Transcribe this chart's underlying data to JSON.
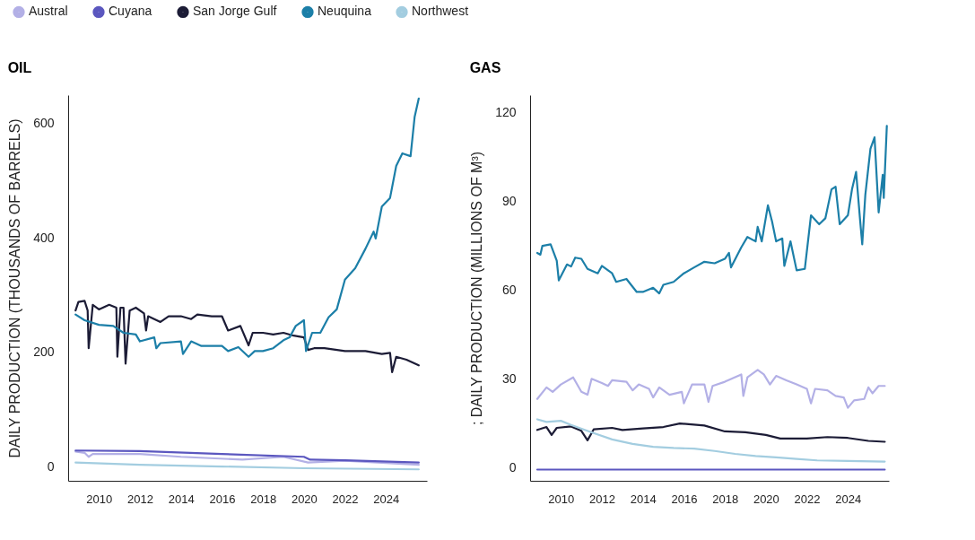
{
  "chart_data": [
    {
      "type": "line",
      "title": "OIL",
      "ylabel": "DAILY PRODUCTION (THOUSANDS OF BARRELS)",
      "legend": "top",
      "xlim": [
        2008.5,
        2026
      ],
      "xticks": [
        2010,
        2012,
        2014,
        2016,
        2018,
        2020,
        2022,
        2024
      ],
      "ylim": [
        -25,
        650
      ],
      "yticks": [
        0,
        200,
        400,
        600
      ],
      "series": [
        {
          "name": "Austral",
          "color": "#b3b0e6",
          "x": [
            2008.86,
            2009.3,
            2009.5,
            2009.7,
            2012,
            2014,
            2017,
            2019,
            2020.2,
            2022,
            2025.6
          ],
          "values": [
            26,
            24,
            17,
            22,
            22,
            17,
            12,
            17,
            7,
            10,
            3
          ]
        },
        {
          "name": "Cuyana",
          "color": "#5b57bf",
          "x": [
            2008.86,
            2012,
            2016,
            2020,
            2020.3,
            2022,
            2025.6
          ],
          "values": [
            28,
            27,
            22,
            17,
            12,
            11,
            7
          ]
        },
        {
          "name": "San Jorge Gulf",
          "color": "#1c1c36",
          "x": [
            2008.86,
            2009.0,
            2009.3,
            2009.45,
            2009.5,
            2009.7,
            2010.0,
            2010.5,
            2010.85,
            2010.9,
            2011.05,
            2011.2,
            2011.3,
            2011.5,
            2011.8,
            2012.2,
            2012.3,
            2012.4,
            2013,
            2013.4,
            2014,
            2014.5,
            2014.8,
            2015.5,
            2016.0,
            2016.3,
            2016.9,
            2017.3,
            2017.5,
            2018,
            2018.5,
            2019.0,
            2019.5,
            2020,
            2020.2,
            2020.5,
            2021,
            2022,
            2023,
            2023.8,
            2024.2,
            2024.3,
            2024.5,
            2025,
            2025.6
          ],
          "values": [
            273,
            288,
            290,
            273,
            207,
            283,
            275,
            283,
            278,
            192,
            278,
            278,
            180,
            273,
            278,
            268,
            238,
            263,
            253,
            263,
            263,
            258,
            266,
            263,
            263,
            238,
            246,
            212,
            234,
            234,
            231,
            234,
            229,
            226,
            204,
            207,
            207,
            202,
            202,
            197,
            199,
            165,
            192,
            187,
            177
          ]
        },
        {
          "name": "Neuquina",
          "color": "#1c7fa8",
          "x": [
            2008.86,
            2009.3,
            2010,
            2010.7,
            2011.2,
            2011.8,
            2012.0,
            2012.7,
            2012.8,
            2013,
            2014,
            2014.1,
            2014.5,
            2015,
            2016,
            2016.3,
            2016.8,
            2017.3,
            2017.6,
            2018,
            2018.5,
            2019,
            2019.3,
            2019.6,
            2020.0,
            2020.1,
            2020.4,
            2020.8,
            2021.2,
            2021.6,
            2022.0,
            2022.5,
            2023.0,
            2023.4,
            2023.5,
            2023.8,
            2024.2,
            2024.5,
            2024.8,
            2025.2,
            2025.4,
            2025.6
          ],
          "values": [
            266,
            256,
            248,
            246,
            234,
            231,
            219,
            226,
            207,
            216,
            219,
            197,
            219,
            211,
            211,
            202,
            209,
            192,
            202,
            202,
            207,
            221,
            226,
            246,
            256,
            202,
            234,
            234,
            261,
            275,
            327,
            347,
            381,
            411,
            399,
            455,
            470,
            526,
            548,
            543,
            612,
            644
          ]
        },
        {
          "name": "Northwest",
          "color": "#a3cde0",
          "x": [
            2008.86,
            2012,
            2016,
            2020,
            2025.6
          ],
          "values": [
            7,
            3,
            0,
            -3,
            -5
          ]
        }
      ]
    },
    {
      "type": "line",
      "title": "GAS",
      "ylabel": "; DAILY PRODUCTION (MILLIONS OF M³)",
      "xlim": [
        2008.5,
        2026
      ],
      "xticks": [
        2010,
        2012,
        2014,
        2016,
        2018,
        2020,
        2022,
        2024
      ],
      "ylim": [
        -4.5,
        126
      ],
      "yticks": [
        0,
        30,
        60,
        90,
        120
      ],
      "series": [
        {
          "name": "Austral",
          "color": "#b3b0e6",
          "x": [
            2008.85,
            2009.3,
            2009.6,
            2010.0,
            2010.6,
            2011.0,
            2011.3,
            2011.5,
            2012.0,
            2012.3,
            2012.5,
            2013.2,
            2013.5,
            2013.8,
            2014.3,
            2014.5,
            2014.8,
            2015.3,
            2015.9,
            2016.0,
            2016.4,
            2017.0,
            2017.2,
            2017.4,
            2018.0,
            2018.8,
            2018.9,
            2019.1,
            2019.6,
            2019.9,
            2020.2,
            2020.5,
            2021.0,
            2021.5,
            2022.0,
            2022.2,
            2022.4,
            2023.0,
            2023.4,
            2023.8,
            2024.0,
            2024.3,
            2024.8,
            2025.0,
            2025.2,
            2025.5,
            2025.8
          ],
          "values": [
            23.2,
            27.1,
            25.6,
            28.1,
            30.5,
            25.6,
            24.6,
            30,
            28.6,
            27.6,
            29.5,
            29,
            26.1,
            28.1,
            26.6,
            23.7,
            27.1,
            24.6,
            25.6,
            21.7,
            28.1,
            28.1,
            22.2,
            27.6,
            29,
            31.5,
            24.2,
            30.5,
            33,
            31.5,
            28.1,
            31,
            29.5,
            28.1,
            26.6,
            21.7,
            26.6,
            26.1,
            24.2,
            23.7,
            20.2,
            22.7,
            23.2,
            27.1,
            25.1,
            27.6,
            27.6
          ]
        },
        {
          "name": "Cuyana",
          "color": "#5b57bf",
          "x": [
            2008.85,
            2015,
            2020,
            2025.8
          ],
          "values": [
            -0.7,
            -0.7,
            -0.7,
            -0.7
          ]
        },
        {
          "name": "San Jorge Gulf",
          "color": "#1c1c36",
          "x": [
            2008.85,
            2009.3,
            2009.55,
            2009.8,
            2010.5,
            2011.0,
            2011.3,
            2011.6,
            2012.5,
            2013.0,
            2014.0,
            2015.0,
            2015.8,
            2017.0,
            2018.0,
            2019.0,
            2020.0,
            2020.7,
            2022.0,
            2023.0,
            2024.0,
            2025.0,
            2025.8
          ],
          "values": [
            12.7,
            13.7,
            11,
            13.4,
            13.9,
            12.4,
            9.2,
            12.9,
            13.4,
            12.7,
            13.2,
            13.7,
            14.9,
            14.2,
            12.2,
            11.9,
            11,
            9.8,
            9.8,
            10.3,
            10,
            9,
            8.7
          ]
        },
        {
          "name": "Neuquina",
          "color": "#1c7fa8",
          "x": [
            2008.85,
            2009.0,
            2009.1,
            2009.5,
            2009.8,
            2009.9,
            2010.3,
            2010.5,
            2010.7,
            2011.0,
            2011.3,
            2011.8,
            2012.0,
            2012.5,
            2012.7,
            2013.2,
            2013.7,
            2014.0,
            2014.5,
            2014.8,
            2015.0,
            2015.5,
            2016.0,
            2016.5,
            2017.0,
            2017.5,
            2018.0,
            2018.2,
            2018.3,
            2018.8,
            2019.1,
            2019.5,
            2019.6,
            2019.8,
            2020.1,
            2020.3,
            2020.5,
            2020.8,
            2020.9,
            2021.2,
            2021.5,
            2021.9,
            2022.2,
            2022.6,
            2022.9,
            2023.2,
            2023.4,
            2023.6,
            2024.0,
            2024.2,
            2024.4,
            2024.6,
            2024.7,
            2024.85,
            2025.1,
            2025.3,
            2025.5,
            2025.7,
            2025.75,
            2025.9
          ],
          "values": [
            72.6,
            72,
            75,
            75.5,
            70,
            63.3,
            68.7,
            68,
            71,
            70.6,
            67.2,
            65.7,
            68.2,
            65.7,
            62.8,
            63.8,
            59.4,
            59.4,
            60.8,
            58.9,
            61.8,
            62.8,
            65.7,
            67.7,
            69.6,
            69.1,
            70.6,
            72.6,
            67.7,
            74.5,
            78,
            76.5,
            81.4,
            76.5,
            88.7,
            83.3,
            76.5,
            77.5,
            68.2,
            76.5,
            66.7,
            67.2,
            85.3,
            82.3,
            84.3,
            94.1,
            95,
            82.3,
            85.3,
            94.1,
            100,
            83.3,
            75.5,
            92.2,
            107.8,
            111.7,
            86.3,
            99,
            91.2,
            115.6
          ]
        },
        {
          "name": "Northwest",
          "color": "#a3cde0",
          "x": [
            2008.85,
            2009.3,
            2010.0,
            2010.5,
            2011.5,
            2012.5,
            2013.5,
            2014.5,
            2015.5,
            2016.5,
            2017.5,
            2018.5,
            2019.5,
            2020.5,
            2021.5,
            2022.5,
            2024.0,
            2025.8
          ],
          "values": [
            16.3,
            15.4,
            15.8,
            14.4,
            11.9,
            9.5,
            8,
            7,
            6.6,
            6.4,
            5.6,
            4.6,
            3.9,
            3.4,
            2.9,
            2.4,
            2.2,
            2
          ]
        }
      ]
    }
  ]
}
